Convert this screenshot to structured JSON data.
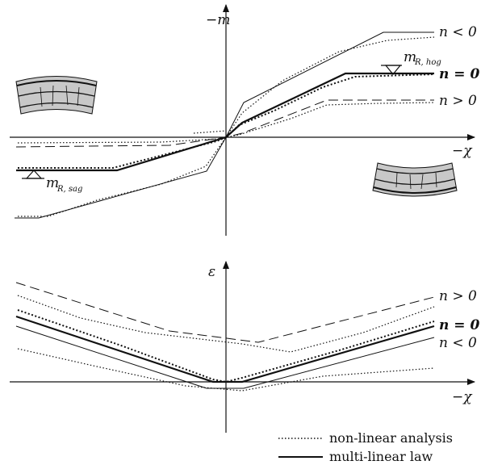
{
  "top_axes": {
    "y_label": "−m",
    "x_label": "−χ"
  },
  "top_labels": {
    "neg": "n < 0",
    "zero": "n = 0",
    "pos": "n > 0",
    "mR_hog": "m",
    "mR_hog_sub": "R, hog",
    "mR_sag": "m",
    "mR_sag_sub": "R, sag"
  },
  "bottom_axes": {
    "y_label": "ε",
    "x_label": "−χ"
  },
  "bottom_labels": {
    "pos": "n > 0",
    "zero": "n = 0",
    "neg": "n < 0"
  },
  "legend": {
    "nonlinear": "non-linear analysis",
    "multilinear": "multi-linear law"
  },
  "colors": {
    "ink": "#111111",
    "ring_fill": "#c8c8c8"
  }
}
